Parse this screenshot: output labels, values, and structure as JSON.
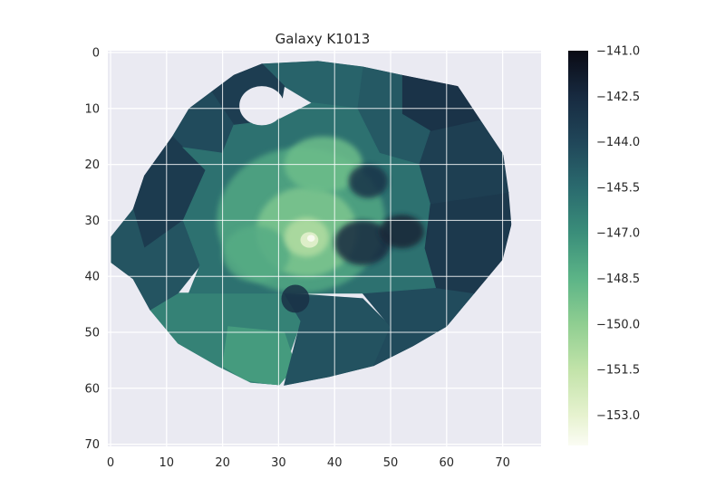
{
  "chart_data": {
    "type": "heatmap",
    "title": "Galaxy K1013",
    "xlabel": "",
    "ylabel": "",
    "xlim": [
      0,
      77
    ],
    "ylim": [
      71,
      0
    ],
    "x_ticks": [
      0,
      10,
      20,
      30,
      40,
      50,
      60,
      70
    ],
    "y_ticks": [
      0,
      10,
      20,
      30,
      40,
      50,
      60,
      70
    ],
    "grid": true,
    "background_color": "#eaeaf2",
    "grid_color": "#ffffff",
    "colormap": "cubehelix_green_r",
    "colorbar": {
      "range": [
        -154,
        -141
      ],
      "ticks": [
        -141.0,
        -142.5,
        -144.0,
        -145.5,
        -147.0,
        -148.5,
        -150.0,
        -151.5,
        -153.0
      ],
      "tick_labels": [
        "−141.0",
        "−142.5",
        "−144.0",
        "−145.5",
        "−147.0",
        "−148.5",
        "−150.0",
        "−151.5",
        "−153.0"
      ],
      "stops": [
        {
          "value": -141.0,
          "color": "#0a0a14"
        },
        {
          "value": -142.5,
          "color": "#172a40"
        },
        {
          "value": -144.0,
          "color": "#204659"
        },
        {
          "value": -145.5,
          "color": "#2a6a6e"
        },
        {
          "value": -147.0,
          "color": "#3a8e7a"
        },
        {
          "value": -148.5,
          "color": "#5cb487"
        },
        {
          "value": -150.0,
          "color": "#8fce91"
        },
        {
          "value": -151.5,
          "color": "#c2e3a9"
        },
        {
          "value": -153.0,
          "color": "#e6f2cf"
        },
        {
          "value": -154.0,
          "color": "#fbfcf4"
        }
      ]
    },
    "map": {
      "outline": [
        [
          27,
          2
        ],
        [
          37,
          1.5
        ],
        [
          45,
          2.5
        ],
        [
          52,
          4
        ],
        [
          62,
          6
        ],
        [
          66,
          12
        ],
        [
          70,
          18
        ],
        [
          73,
          25
        ],
        [
          71.5,
          31
        ],
        [
          70,
          37
        ],
        [
          65,
          43
        ],
        [
          60,
          49
        ],
        [
          54,
          52.5
        ],
        [
          47,
          56
        ],
        [
          39,
          58
        ],
        [
          31,
          59.5
        ],
        [
          25,
          59
        ],
        [
          19,
          56
        ],
        [
          12,
          52
        ],
        [
          7,
          46
        ],
        [
          4,
          40.5
        ],
        [
          0,
          37.5
        ],
        [
          0,
          33
        ],
        [
          4,
          28
        ],
        [
          6,
          22
        ],
        [
          11,
          15
        ],
        [
          14,
          10
        ],
        [
          18,
          7
        ],
        [
          22,
          4
        ]
      ],
      "hole": {
        "center": [
          27,
          9.5
        ],
        "radius": [
          4,
          3.5
        ]
      },
      "regions": [
        {
          "value": -146.5,
          "polygon": [
            [
              14,
              43
            ],
            [
              31,
              43
            ],
            [
              34,
              48
            ],
            [
              30,
              59.5
            ],
            [
              25,
              59
            ],
            [
              19,
              56
            ],
            [
              12,
              52
            ],
            [
              7,
              46
            ],
            [
              10,
              43
            ]
          ]
        },
        {
          "value": -147.5,
          "polygon": [
            [
              21,
              49
            ],
            [
              31,
              50
            ],
            [
              33,
              56
            ],
            [
              30,
              59.5
            ],
            [
              24,
              58.5
            ],
            [
              20,
              56
            ]
          ]
        },
        {
          "value": -144.5,
          "polygon": [
            [
              31,
              43
            ],
            [
              45,
              44
            ],
            [
              50,
              49
            ],
            [
              47,
              56
            ],
            [
              39,
              58
            ],
            [
              31,
              59.5
            ],
            [
              34,
              48
            ]
          ]
        },
        {
          "value": -144.2,
          "polygon": [
            [
              45,
              43
            ],
            [
              58,
              42
            ],
            [
              65,
              43
            ],
            [
              60,
              49
            ],
            [
              54,
              52.5
            ],
            [
              47,
              56
            ],
            [
              50,
              49
            ]
          ]
        },
        {
          "value": -143.3,
          "polygon": [
            [
              57,
              27
            ],
            [
              71,
              25
            ],
            [
              71.5,
              31
            ],
            [
              70,
              37
            ],
            [
              65,
              43
            ],
            [
              58,
              42
            ],
            [
              56,
              35
            ]
          ]
        },
        {
          "value": -143.6,
          "polygon": [
            [
              57,
              14
            ],
            [
              66,
              12
            ],
            [
              70,
              18
            ],
            [
              71,
              25
            ],
            [
              57,
              27
            ],
            [
              55,
              20
            ]
          ]
        },
        {
          "value": -143.0,
          "polygon": [
            [
              52,
              4
            ],
            [
              62,
              6
            ],
            [
              66,
              12
            ],
            [
              57,
              14
            ],
            [
              52,
              11
            ]
          ]
        },
        {
          "value": -144.8,
          "polygon": [
            [
              45,
              2.5
            ],
            [
              52,
              4
            ],
            [
              52,
              11
            ],
            [
              57,
              14
            ],
            [
              55,
              20
            ],
            [
              48,
              18
            ],
            [
              44,
              10
            ]
          ]
        },
        {
          "value": -145.2,
          "polygon": [
            [
              27,
              2
            ],
            [
              37,
              1.5
            ],
            [
              45,
              2.5
            ],
            [
              44,
              10
            ],
            [
              36,
              9
            ],
            [
              31,
              6
            ]
          ]
        },
        {
          "value": -143.5,
          "polygon": [
            [
              22,
              4
            ],
            [
              27,
              2
            ],
            [
              31,
              6
            ],
            [
              30,
              12
            ],
            [
              22,
              13
            ],
            [
              18,
              7
            ]
          ]
        },
        {
          "value": -144.2,
          "polygon": [
            [
              14,
              10
            ],
            [
              18,
              7
            ],
            [
              22,
              13
            ],
            [
              20,
              18
            ],
            [
              13,
              17
            ],
            [
              11,
              15
            ]
          ]
        },
        {
          "value": -143.4,
          "polygon": [
            [
              6,
              22
            ],
            [
              11,
              15
            ],
            [
              13,
              17
            ],
            [
              17,
              21
            ],
            [
              13,
              30
            ],
            [
              6,
              35
            ],
            [
              4,
              28
            ]
          ]
        },
        {
          "value": -144.6,
          "polygon": [
            [
              0,
              33
            ],
            [
              4,
              28
            ],
            [
              6,
              35
            ],
            [
              13,
              30
            ],
            [
              16,
              38
            ],
            [
              12,
              43
            ],
            [
              7,
              46
            ],
            [
              4,
              40.5
            ],
            [
              0,
              37.5
            ]
          ]
        },
        {
          "value": -145.8,
          "polygon": [
            [
              13,
              17
            ],
            [
              20,
              18
            ],
            [
              22,
              13
            ],
            [
              30,
              12
            ],
            [
              36,
              9
            ],
            [
              44,
              10
            ],
            [
              48,
              18
            ],
            [
              55,
              20
            ],
            [
              57,
              27
            ],
            [
              56,
              35
            ],
            [
              58,
              42
            ],
            [
              45,
              43
            ],
            [
              31,
              43
            ],
            [
              14,
              43
            ],
            [
              16,
              38
            ],
            [
              13,
              30
            ],
            [
              17,
              21
            ]
          ]
        }
      ],
      "blobs": [
        {
          "value": -148.0,
          "center": [
            34,
            30
          ],
          "radius": [
            15,
            13
          ]
        },
        {
          "value": -149.5,
          "center": [
            35,
            32
          ],
          "radius": [
            9,
            8
          ]
        },
        {
          "value": -149.0,
          "center": [
            38,
            20
          ],
          "radius": [
            7,
            5
          ]
        },
        {
          "value": -148.2,
          "center": [
            26,
            36
          ],
          "radius": [
            6,
            5
          ]
        },
        {
          "value": -151.0,
          "center": [
            35,
            33
          ],
          "radius": [
            4,
            3.5
          ]
        },
        {
          "value": -153.0,
          "center": [
            35.5,
            33.5
          ],
          "radius": [
            1.6,
            1.4
          ]
        },
        {
          "value": -154.0,
          "center": [
            35.8,
            33.2
          ],
          "radius": [
            0.7,
            0.6
          ]
        },
        {
          "value": -142.5,
          "center": [
            45,
            34
          ],
          "radius": [
            5,
            4
          ]
        },
        {
          "value": -142.2,
          "center": [
            52,
            32
          ],
          "radius": [
            4,
            3
          ]
        },
        {
          "value": -143.0,
          "center": [
            46,
            23
          ],
          "radius": [
            3.5,
            3
          ]
        },
        {
          "value": -142.8,
          "center": [
            33,
            44
          ],
          "radius": [
            2.5,
            2.5
          ]
        }
      ]
    }
  }
}
